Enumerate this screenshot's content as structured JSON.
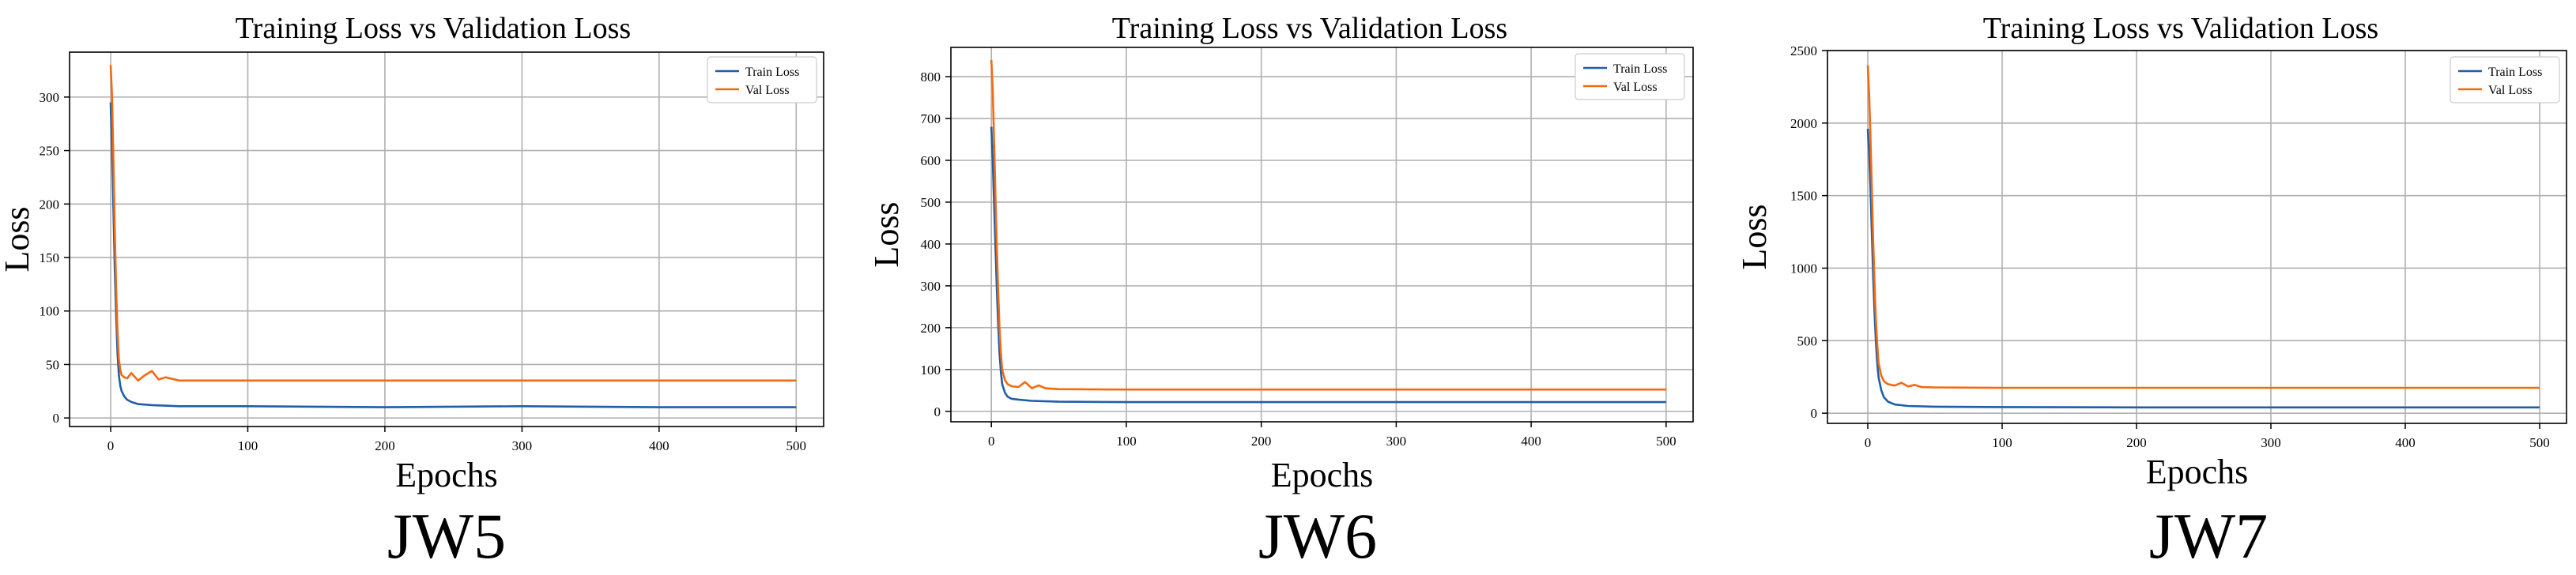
{
  "colors": {
    "train": "#1f5ea8",
    "val": "#f26a11",
    "grid": "#b0b0b0",
    "axis": "#000000"
  },
  "chart_data": [
    {
      "type": "line",
      "caption": "JW5",
      "title": "Training Loss vs Validation Loss",
      "xlabel": "Epochs",
      "ylabel": "Loss",
      "xlim": [
        -30,
        520
      ],
      "ylim": [
        -8,
        342
      ],
      "xticks": [
        0,
        100,
        200,
        300,
        400,
        500
      ],
      "yticks": [
        0,
        50,
        100,
        150,
        200,
        250,
        300
      ],
      "legend": "top-right",
      "grid": true,
      "series": [
        {
          "name": "Train Loss",
          "x": [
            0,
            1,
            2,
            3,
            4,
            5,
            6,
            7,
            8,
            10,
            12,
            15,
            20,
            30,
            50,
            100,
            200,
            300,
            400,
            500
          ],
          "y": [
            295,
            250,
            195,
            140,
            95,
            60,
            40,
            30,
            25,
            20,
            17,
            15,
            13,
            12,
            11,
            11,
            10,
            11,
            10,
            10
          ]
        },
        {
          "name": "Val Loss",
          "x": [
            0,
            1,
            2,
            3,
            4,
            5,
            6,
            7,
            8,
            10,
            12,
            15,
            20,
            25,
            30,
            35,
            40,
            50,
            100,
            200,
            300,
            400,
            500
          ],
          "y": [
            330,
            300,
            240,
            175,
            120,
            80,
            55,
            45,
            40,
            38,
            37,
            42,
            35,
            40,
            44,
            36,
            38,
            35,
            35,
            35,
            35,
            35,
            35
          ]
        }
      ]
    },
    {
      "type": "line",
      "caption": "JW6",
      "title": "Training Loss vs Validation Loss",
      "xlabel": "Epochs",
      "ylabel": "Loss",
      "xlim": [
        -30,
        520
      ],
      "ylim": [
        -25,
        870
      ],
      "xticks": [
        0,
        100,
        200,
        300,
        400,
        500
      ],
      "yticks": [
        0,
        100,
        200,
        300,
        400,
        500,
        600,
        700,
        800
      ],
      "legend": "top-right",
      "grid": true,
      "series": [
        {
          "name": "Train Loss",
          "x": [
            0,
            1,
            2,
            3,
            4,
            5,
            6,
            7,
            8,
            10,
            12,
            15,
            20,
            30,
            50,
            100,
            200,
            300,
            400,
            500
          ],
          "y": [
            680,
            600,
            500,
            400,
            300,
            210,
            140,
            95,
            65,
            45,
            35,
            30,
            28,
            25,
            23,
            22,
            22,
            22,
            22,
            22
          ]
        },
        {
          "name": "Val Loss",
          "x": [
            0,
            1,
            2,
            3,
            4,
            5,
            6,
            7,
            8,
            10,
            12,
            15,
            20,
            25,
            30,
            35,
            40,
            50,
            100,
            200,
            300,
            400,
            500
          ],
          "y": [
            840,
            770,
            650,
            520,
            400,
            290,
            200,
            140,
            100,
            75,
            65,
            60,
            58,
            70,
            55,
            62,
            55,
            53,
            52,
            52,
            52,
            52,
            52
          ]
        }
      ]
    },
    {
      "type": "line",
      "caption": "JW7",
      "title": "Training Loss vs Validation Loss",
      "xlabel": "Epochs",
      "ylabel": "Loss",
      "xlim": [
        -30,
        520
      ],
      "ylim": [
        -70,
        2500
      ],
      "xticks": [
        0,
        100,
        200,
        300,
        400,
        500
      ],
      "yticks": [
        0,
        500,
        1000,
        1500,
        2000,
        2500
      ],
      "legend": "top-right",
      "grid": true,
      "series": [
        {
          "name": "Train Loss",
          "x": [
            0,
            1,
            2,
            3,
            4,
            5,
            6,
            7,
            8,
            10,
            12,
            15,
            20,
            30,
            50,
            100,
            200,
            300,
            400,
            500
          ],
          "y": [
            1960,
            1800,
            1550,
            1250,
            950,
            700,
            500,
            350,
            250,
            160,
            110,
            80,
            60,
            50,
            45,
            42,
            40,
            40,
            40,
            40
          ]
        },
        {
          "name": "Val Loss",
          "x": [
            0,
            1,
            2,
            3,
            4,
            5,
            6,
            7,
            8,
            10,
            12,
            15,
            20,
            25,
            30,
            35,
            40,
            50,
            100,
            200,
            300,
            400,
            500
          ],
          "y": [
            2400,
            2200,
            1900,
            1550,
            1200,
            900,
            650,
            480,
            350,
            260,
            220,
            200,
            190,
            210,
            185,
            195,
            180,
            178,
            175,
            175,
            175,
            175,
            175
          ]
        }
      ]
    }
  ]
}
